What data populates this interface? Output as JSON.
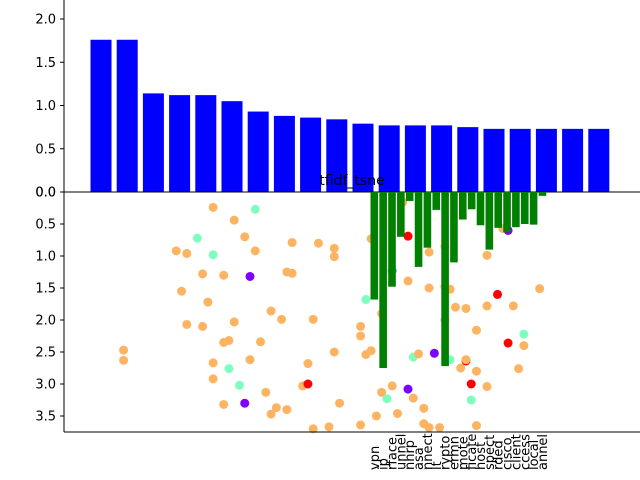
{
  "chart_data": [
    {
      "type": "bar",
      "panel": "top",
      "title": "",
      "ylim": [
        0,
        2.2
      ],
      "yticks": [
        "0.0",
        "0.5",
        "1.0",
        "1.5",
        "2.0"
      ],
      "values": [
        1.76,
        1.76,
        1.14,
        1.12,
        1.12,
        1.05,
        0.93,
        0.88,
        0.86,
        0.84,
        0.79,
        0.77,
        0.77,
        0.77,
        0.75,
        0.73,
        0.73,
        0.73,
        0.73,
        0.73
      ],
      "color": "#0000ff",
      "grid": false
    },
    {
      "type": "scatter",
      "panel": "bottom",
      "title": "tfidf_tsne",
      "ylim": [
        3.75,
        0.0
      ],
      "yticks": [
        "0.0",
        "0.5",
        "1.0",
        "1.5",
        "2.0",
        "2.5",
        "3.0",
        "3.5"
      ],
      "grid": false,
      "colors": {
        "orange": "#fdb462",
        "green": "#7fffbf",
        "purple": "#8000ff",
        "red": "#ff0000",
        "cyan": "#00bfff"
      },
      "points": [
        {
          "x": 0.06,
          "y": 2.47,
          "c": "orange"
        },
        {
          "x": 0.06,
          "y": 2.63,
          "c": "orange"
        },
        {
          "x": 0.16,
          "y": 0.92,
          "c": "orange"
        },
        {
          "x": 0.18,
          "y": 0.96,
          "c": "orange"
        },
        {
          "x": 0.17,
          "y": 1.55,
          "c": "orange"
        },
        {
          "x": 0.18,
          "y": 2.07,
          "c": "orange"
        },
        {
          "x": 0.2,
          "y": 0.72,
          "c": "green"
        },
        {
          "x": 0.21,
          "y": 1.28,
          "c": "orange"
        },
        {
          "x": 0.21,
          "y": 2.1,
          "c": "orange"
        },
        {
          "x": 0.22,
          "y": 1.72,
          "c": "orange"
        },
        {
          "x": 0.23,
          "y": 0.24,
          "c": "orange"
        },
        {
          "x": 0.23,
          "y": 0.98,
          "c": "green"
        },
        {
          "x": 0.23,
          "y": 2.67,
          "c": "orange"
        },
        {
          "x": 0.23,
          "y": 2.92,
          "c": "orange"
        },
        {
          "x": 0.25,
          "y": 1.3,
          "c": "orange"
        },
        {
          "x": 0.25,
          "y": 2.35,
          "c": "orange"
        },
        {
          "x": 0.25,
          "y": 3.32,
          "c": "orange"
        },
        {
          "x": 0.26,
          "y": 2.32,
          "c": "orange"
        },
        {
          "x": 0.26,
          "y": 2.76,
          "c": "green"
        },
        {
          "x": 0.27,
          "y": 0.44,
          "c": "orange"
        },
        {
          "x": 0.27,
          "y": 2.03,
          "c": "orange"
        },
        {
          "x": 0.28,
          "y": 3.02,
          "c": "green"
        },
        {
          "x": 0.29,
          "y": 0.7,
          "c": "orange"
        },
        {
          "x": 0.29,
          "y": 3.3,
          "c": "purple"
        },
        {
          "x": 0.3,
          "y": 1.32,
          "c": "purple"
        },
        {
          "x": 0.3,
          "y": 2.62,
          "c": "orange"
        },
        {
          "x": 0.31,
          "y": 0.27,
          "c": "green"
        },
        {
          "x": 0.31,
          "y": 0.92,
          "c": "orange"
        },
        {
          "x": 0.32,
          "y": 2.34,
          "c": "orange"
        },
        {
          "x": 0.33,
          "y": 3.13,
          "c": "orange"
        },
        {
          "x": 0.34,
          "y": 1.86,
          "c": "orange"
        },
        {
          "x": 0.34,
          "y": 3.47,
          "c": "orange"
        },
        {
          "x": 0.35,
          "y": 3.37,
          "c": "orange"
        },
        {
          "x": 0.36,
          "y": 1.99,
          "c": "orange"
        },
        {
          "x": 0.37,
          "y": 1.25,
          "c": "orange"
        },
        {
          "x": 0.37,
          "y": 3.4,
          "c": "orange"
        },
        {
          "x": 0.38,
          "y": 0.79,
          "c": "orange"
        },
        {
          "x": 0.38,
          "y": 1.27,
          "c": "orange"
        },
        {
          "x": 0.4,
          "y": 3.03,
          "c": "orange"
        },
        {
          "x": 0.41,
          "y": 3.0,
          "c": "red"
        },
        {
          "x": 0.41,
          "y": 2.68,
          "c": "orange"
        },
        {
          "x": 0.42,
          "y": 1.99,
          "c": "orange"
        },
        {
          "x": 0.42,
          "y": 3.7,
          "c": "orange"
        },
        {
          "x": 0.43,
          "y": 0.8,
          "c": "orange"
        },
        {
          "x": 0.45,
          "y": 3.67,
          "c": "orange"
        },
        {
          "x": 0.46,
          "y": 2.5,
          "c": "orange"
        },
        {
          "x": 0.46,
          "y": 0.88,
          "c": "orange"
        },
        {
          "x": 0.46,
          "y": 1.01,
          "c": "orange"
        },
        {
          "x": 0.47,
          "y": 3.3,
          "c": "orange"
        },
        {
          "x": 0.51,
          "y": 2.1,
          "c": "orange"
        },
        {
          "x": 0.51,
          "y": 2.25,
          "c": "orange"
        },
        {
          "x": 0.51,
          "y": 3.64,
          "c": "orange"
        },
        {
          "x": 0.52,
          "y": 1.68,
          "c": "green"
        },
        {
          "x": 0.52,
          "y": 2.54,
          "c": "orange"
        },
        {
          "x": 0.53,
          "y": 0.73,
          "c": "orange"
        },
        {
          "x": 0.53,
          "y": 2.48,
          "c": "orange"
        },
        {
          "x": 0.54,
          "y": 3.5,
          "c": "orange"
        },
        {
          "x": 0.55,
          "y": 1.9,
          "c": "orange"
        },
        {
          "x": 0.55,
          "y": 3.13,
          "c": "orange"
        },
        {
          "x": 0.56,
          "y": 3.23,
          "c": "green"
        },
        {
          "x": 0.57,
          "y": 1.23,
          "c": "cyan"
        },
        {
          "x": 0.57,
          "y": 3.03,
          "c": "orange"
        },
        {
          "x": 0.58,
          "y": 3.46,
          "c": "orange"
        },
        {
          "x": 0.59,
          "y": 0.16,
          "c": "orange"
        },
        {
          "x": 0.6,
          "y": 0.69,
          "c": "red"
        },
        {
          "x": 0.6,
          "y": 1.39,
          "c": "orange"
        },
        {
          "x": 0.6,
          "y": 3.08,
          "c": "purple"
        },
        {
          "x": 0.61,
          "y": 3.22,
          "c": "orange"
        },
        {
          "x": 0.61,
          "y": 2.58,
          "c": "green"
        },
        {
          "x": 0.62,
          "y": 2.53,
          "c": "orange"
        },
        {
          "x": 0.63,
          "y": 3.38,
          "c": "orange"
        },
        {
          "x": 0.63,
          "y": 3.62,
          "c": "orange"
        },
        {
          "x": 0.64,
          "y": 3.68,
          "c": "orange"
        },
        {
          "x": 0.64,
          "y": 0.94,
          "c": "orange"
        },
        {
          "x": 0.64,
          "y": 1.5,
          "c": "orange"
        },
        {
          "x": 0.65,
          "y": 2.52,
          "c": "purple"
        },
        {
          "x": 0.66,
          "y": 3.68,
          "c": "orange"
        },
        {
          "x": 0.67,
          "y": 1.48,
          "c": "orange"
        },
        {
          "x": 0.67,
          "y": 0.85,
          "c": "orange"
        },
        {
          "x": 0.67,
          "y": 2.0,
          "c": "orange"
        },
        {
          "x": 0.68,
          "y": 1.52,
          "c": "orange"
        },
        {
          "x": 0.68,
          "y": 2.62,
          "c": "green"
        },
        {
          "x": 0.69,
          "y": 1.8,
          "c": "orange"
        },
        {
          "x": 0.7,
          "y": 2.75,
          "c": "orange"
        },
        {
          "x": 0.71,
          "y": 2.64,
          "c": "red"
        },
        {
          "x": 0.71,
          "y": 2.62,
          "c": "orange"
        },
        {
          "x": 0.71,
          "y": 1.82,
          "c": "orange"
        },
        {
          "x": 0.72,
          "y": 3.25,
          "c": "green"
        },
        {
          "x": 0.72,
          "y": 3.0,
          "c": "red"
        },
        {
          "x": 0.73,
          "y": 2.16,
          "c": "orange"
        },
        {
          "x": 0.73,
          "y": 2.8,
          "c": "orange"
        },
        {
          "x": 0.73,
          "y": 3.65,
          "c": "orange"
        },
        {
          "x": 0.75,
          "y": 1.78,
          "c": "orange"
        },
        {
          "x": 0.75,
          "y": 0.99,
          "c": "orange"
        },
        {
          "x": 0.75,
          "y": 3.04,
          "c": "orange"
        },
        {
          "x": 0.77,
          "y": 1.6,
          "c": "red"
        },
        {
          "x": 0.78,
          "y": 0.57,
          "c": "orange"
        },
        {
          "x": 0.79,
          "y": 0.6,
          "c": "purple"
        },
        {
          "x": 0.79,
          "y": 2.36,
          "c": "red"
        },
        {
          "x": 0.8,
          "y": 1.78,
          "c": "orange"
        },
        {
          "x": 0.81,
          "y": 2.76,
          "c": "orange"
        },
        {
          "x": 0.82,
          "y": 2.22,
          "c": "green"
        },
        {
          "x": 0.82,
          "y": 2.4,
          "c": "orange"
        },
        {
          "x": 0.85,
          "y": 1.51,
          "c": "orange"
        }
      ]
    },
    {
      "type": "bar",
      "panel": "bottom-overlay",
      "orientation": "downward",
      "color": "#008000",
      "categories": [
        "vpn",
        "ip",
        "interface",
        "tunnel",
        "nhrp",
        "asa",
        "connect",
        "client",
        "crypto",
        "dmvpn",
        "remote",
        "certificate",
        "host",
        "inspect",
        "hosted",
        "cisco",
        "client",
        "access",
        "local",
        "tunnel"
      ],
      "label_glyphs": [
        "vpn",
        "ip",
        "rface",
        "unnel",
        "nhrp",
        "asa",
        "nnect",
        "lt",
        "rypto",
        "ermn",
        "mote",
        "ficate",
        "host",
        "spect",
        "rded",
        "cisco",
        "client",
        "ccess",
        "local",
        "annel"
      ],
      "values": [
        1.68,
        2.75,
        1.48,
        0.7,
        0.14,
        1.17,
        0.87,
        0.28,
        2.72,
        1.1,
        0.43,
        0.27,
        0.52,
        0.9,
        0.56,
        0.63,
        0.55,
        0.5,
        0.51,
        0.06
      ]
    }
  ]
}
